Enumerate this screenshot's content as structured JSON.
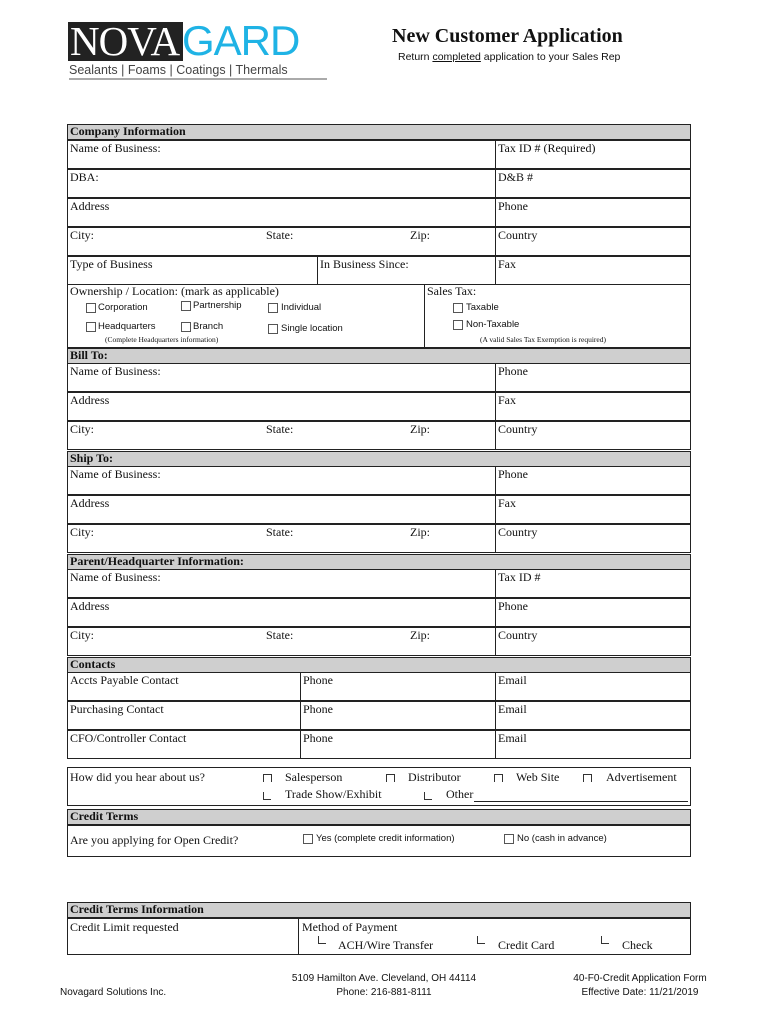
{
  "logo": {
    "brand_left": "NOVA",
    "brand_right": "GARD",
    "tagline": "Sealants | Foams | Coatings | Thermals",
    "brand_color": "#1fb3e5"
  },
  "header": {
    "title": "New Customer Application",
    "subtitle_pre": "Return ",
    "subtitle_em": "completed",
    "subtitle_post": " application to your Sales Rep"
  },
  "company": {
    "title": "Company Information",
    "name": "Name of Business:",
    "tax_id": "Tax ID # (Required)",
    "dba": "DBA:",
    "dnb": "D&B #",
    "address": "Address",
    "phone": "Phone",
    "city": "City:",
    "state": "State:",
    "zip": "Zip:",
    "country": "Country",
    "type": "Type of Business",
    "since": "In Business Since:",
    "fax": "Fax",
    "ownership_label": "Ownership / Location:  (mark as applicable)",
    "ownership_options": [
      "Corporation",
      "Partnership",
      "Individual",
      "Headquarters",
      "Branch",
      "Single location"
    ],
    "hq_note": "(Complete Headquarters information)",
    "sales_tax_label": "Sales Tax:",
    "taxable": "Taxable",
    "non_taxable": "Non-Taxable",
    "exemption_note": "(A valid Sales Tax Exemption is required)"
  },
  "bill_to": {
    "title": "Bill To:",
    "name": "Name of Business:",
    "phone": "Phone",
    "address": "Address",
    "fax": "Fax",
    "city": "City:",
    "state": "State:",
    "zip": "Zip:",
    "country": "Country"
  },
  "ship_to": {
    "title": "Ship To:",
    "name": "Name of Business:",
    "phone": "Phone",
    "address": "Address",
    "fax": "Fax",
    "city": "City:",
    "state": "State:",
    "zip": "Zip:",
    "country": "Country"
  },
  "parent": {
    "title": "Parent/Headquarter Information:",
    "name": "Name of Business:",
    "phone": "Tax ID #",
    "address": "Address",
    "fax": "Phone",
    "city": "City:",
    "state": "State:",
    "zip": "Zip:",
    "country": "Country"
  },
  "contacts": {
    "title": "Contacts",
    "rows": [
      {
        "label": "Accts Payable Contact",
        "phone": "Phone",
        "email": "Email"
      },
      {
        "label": "Purchasing Contact",
        "phone": "Phone",
        "email": "Email"
      },
      {
        "label": "CFO/Controller Contact",
        "phone": "Phone",
        "email": "Email"
      }
    ]
  },
  "referral": {
    "question": "How did you hear about us?",
    "options": [
      "Salesperson",
      "Distributor",
      "Web Site",
      "Advertisement",
      "Trade Show/Exhibit",
      "Other"
    ]
  },
  "credit_terms": {
    "title": "Credit Terms",
    "question": "Are you applying for Open Credit?",
    "yes": "Yes (complete credit information)",
    "no": "No (cash in advance)"
  },
  "credit_info": {
    "title": "Credit Terms Information",
    "limit": "Credit Limit requested",
    "method": "Method of Payment",
    "methods": [
      "ACH/Wire Transfer",
      "Credit Card",
      "Check"
    ]
  },
  "footer": {
    "company": "Novagard Solutions Inc.",
    "address": "5109 Hamilton Ave.  Cleveland, OH  44114",
    "phone": "Phone: 216-881-8111",
    "form_id": "40-F0-Credit Application Form",
    "effective": "Effective Date: 11/21/2019"
  }
}
